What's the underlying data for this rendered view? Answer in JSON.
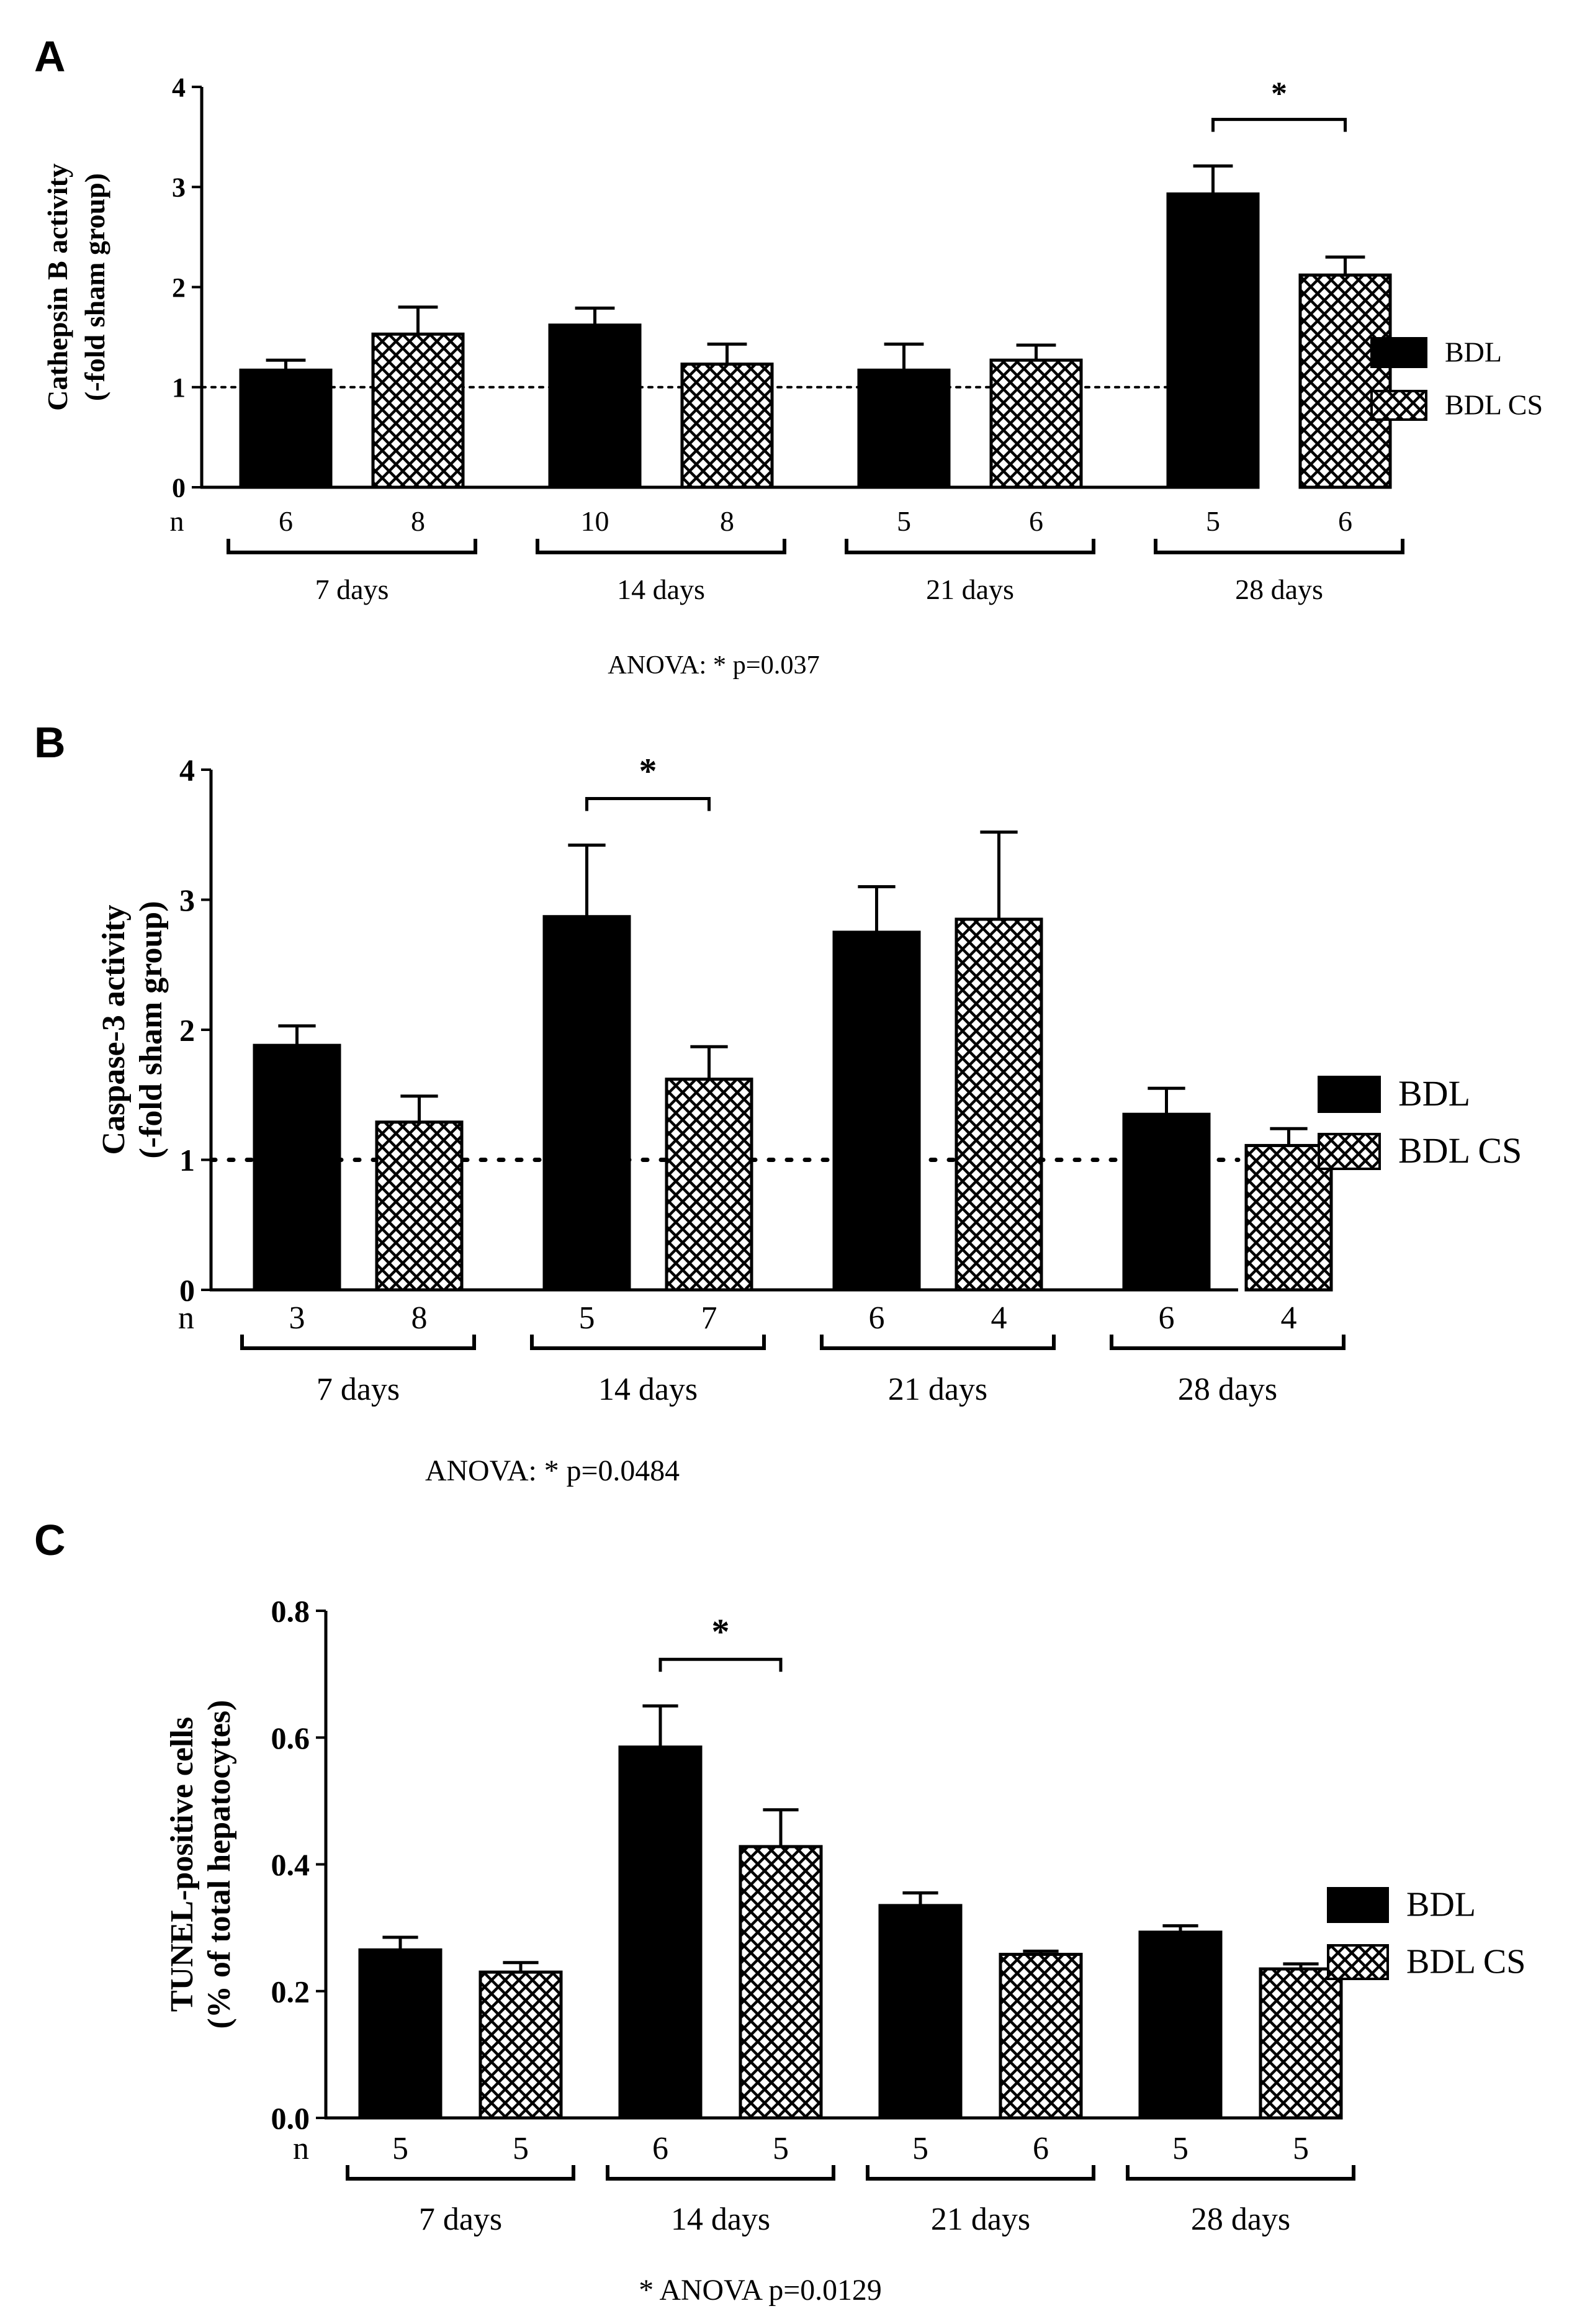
{
  "colors": {
    "bdl": "#000000",
    "bdl_cs_bg": "#ffffff",
    "bdl_cs_hatch": "#000000",
    "dotted_line": "#000000"
  },
  "legend": {
    "bdl": "BDL",
    "bdl_cs": "BDL CS"
  },
  "n_label": "n",
  "chart_data": [
    {
      "panel": "A",
      "type": "bar",
      "ylabel_line1": "Cathepsin B activity",
      "ylabel_line2": "(-fold sham group)",
      "ylim": [
        0,
        4
      ],
      "yticks": [
        "0",
        "1",
        "2",
        "3",
        "4"
      ],
      "reference_line": 1,
      "groups": [
        "7 days",
        "14 days",
        "21 days",
        "28 days"
      ],
      "series": [
        {
          "name": "BDL",
          "values": [
            1.17,
            1.62,
            1.17,
            2.93
          ],
          "errors": [
            0.1,
            0.17,
            0.26,
            0.28
          ],
          "n": [
            "6",
            "10",
            "5",
            "5"
          ]
        },
        {
          "name": "BDL CS",
          "values": [
            1.53,
            1.23,
            1.27,
            2.12
          ],
          "errors": [
            0.27,
            0.2,
            0.15,
            0.18
          ],
          "n": [
            "8",
            "8",
            "6",
            "6"
          ]
        }
      ],
      "significance": {
        "group_index": 3,
        "label": "*"
      },
      "note": "ANOVA: * p=0.037"
    },
    {
      "panel": "B",
      "type": "bar",
      "ylabel_line1": "Caspase-3 activity",
      "ylabel_line2": "(-fold sham group)",
      "ylim": [
        0,
        4
      ],
      "yticks": [
        "0",
        "1",
        "2",
        "3",
        "4"
      ],
      "reference_line": 1,
      "groups": [
        "7 days",
        "14 days",
        "21 days",
        "28 days"
      ],
      "series": [
        {
          "name": "BDL",
          "values": [
            1.88,
            2.87,
            2.75,
            1.35
          ],
          "errors": [
            0.15,
            0.55,
            0.35,
            0.2
          ],
          "n": [
            "3",
            "5",
            "6",
            "6"
          ]
        },
        {
          "name": "BDL CS",
          "values": [
            1.29,
            1.62,
            2.85,
            1.11
          ],
          "errors": [
            0.2,
            0.25,
            0.67,
            0.13
          ],
          "n": [
            "8",
            "7",
            "4",
            "4"
          ]
        }
      ],
      "significance": {
        "group_index": 1,
        "label": "*"
      },
      "note": "ANOVA: * p=0.0484"
    },
    {
      "panel": "C",
      "type": "bar",
      "ylabel_line1": "TUNEL-positive cells",
      "ylabel_line2": "(% of total hepatocytes)",
      "ylim": [
        0,
        0.8
      ],
      "yticks": [
        "0.0",
        "0.2",
        "0.4",
        "0.6",
        "0.8"
      ],
      "reference_line": null,
      "groups": [
        "7 days",
        "14 days",
        "21 days",
        "28 days"
      ],
      "series": [
        {
          "name": "BDL",
          "values": [
            0.265,
            0.585,
            0.335,
            0.293
          ],
          "errors": [
            0.02,
            0.065,
            0.02,
            0.01
          ],
          "n": [
            "5",
            "6",
            "5",
            "5"
          ]
        },
        {
          "name": "BDL CS",
          "values": [
            0.23,
            0.428,
            0.258,
            0.235
          ],
          "errors": [
            0.015,
            0.058,
            0.005,
            0.008
          ],
          "n": [
            "5",
            "5",
            "6",
            "5"
          ]
        }
      ],
      "significance": {
        "group_index": 1,
        "label": "*"
      },
      "note": "* ANOVA p=0.0129"
    }
  ]
}
